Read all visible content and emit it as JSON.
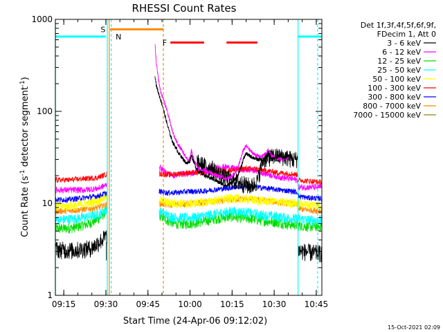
{
  "chart_data": {
    "type": "line",
    "title": "RHESSI Count Rates",
    "xlabel": "Start Time (24-Apr-06 09:12:02)",
    "ylabel": "Count Rate (s⁻¹ detector segment⁻¹)",
    "ylabel_parts": {
      "main": "Count Rate (s",
      "sup1": "-1",
      "mid": " detector segment",
      "sup2": "-1",
      "end": ")"
    },
    "y_scale": "log",
    "ylim": [
      1,
      1000
    ],
    "xlim_minutes": [
      0,
      95
    ],
    "x_ticks": [
      "09:15",
      "09:30",
      "09:45",
      "10:00",
      "10:15",
      "10:30",
      "10:45"
    ],
    "y_ticks": [
      "1",
      "10",
      "100",
      "1000"
    ],
    "legend_header": [
      "Det 1f,3f,4f,5f,6f,9f,",
      "FDecim 1, Att 0"
    ],
    "timestamp": "15-Oct-2021 02:09",
    "grid": false,
    "legend_position": "right",
    "series": [
      {
        "name": "3 - 6 keV",
        "color": "#000000",
        "pre": [
          [
            0,
            3.2
          ],
          [
            6,
            3.1
          ],
          [
            13,
            3.3
          ],
          [
            16,
            3.9
          ],
          [
            18.5,
            4.5
          ]
        ],
        "post": [
          [
            50.5,
            28
          ],
          [
            53,
            26
          ],
          [
            56,
            24
          ],
          [
            58,
            21
          ],
          [
            61,
            19
          ],
          [
            63,
            18
          ],
          [
            66,
            17
          ],
          [
            68,
            16
          ],
          [
            70,
            15.5
          ],
          [
            72,
            17.5
          ],
          [
            74,
            30
          ],
          [
            78,
            33
          ],
          [
            82,
            32
          ],
          [
            85,
            30
          ],
          [
            86.5,
            31
          ]
        ],
        "tail": [
          [
            86.5,
            3.1
          ],
          [
            89,
            3.0
          ],
          [
            93,
            2.9
          ],
          [
            95,
            2.9
          ]
        ]
      },
      {
        "name": "6 - 12 keV",
        "color": "#ff00ff",
        "pre": [
          [
            0,
            14
          ],
          [
            5,
            14
          ],
          [
            10,
            14
          ],
          [
            15,
            14.5
          ],
          [
            18.5,
            16
          ]
        ],
        "post": [
          [
            37,
            25
          ],
          [
            39,
            22
          ],
          [
            42,
            20
          ],
          [
            44,
            21
          ],
          [
            46,
            21
          ],
          [
            48,
            21
          ],
          [
            50,
            22
          ],
          [
            53,
            23
          ],
          [
            56,
            24
          ],
          [
            60,
            25
          ],
          [
            64,
            24
          ],
          [
            68,
            23
          ],
          [
            71,
            23
          ],
          [
            73,
            22
          ],
          [
            75,
            21
          ],
          [
            78,
            20
          ],
          [
            81,
            19
          ],
          [
            84,
            18.5
          ],
          [
            86.5,
            18
          ]
        ],
        "tail": [
          [
            86.5,
            15
          ],
          [
            90,
            15
          ],
          [
            95,
            15
          ]
        ]
      },
      {
        "name": "12 - 25 keV",
        "color": "#00dd00",
        "pre": [
          [
            0,
            5.3
          ],
          [
            6,
            5.4
          ],
          [
            12,
            6
          ],
          [
            16,
            7
          ],
          [
            18.5,
            8.5
          ]
        ],
        "post": [
          [
            37,
            7.5
          ],
          [
            40,
            6.5
          ],
          [
            43,
            6
          ],
          [
            47,
            6
          ],
          [
            52,
            6.3
          ],
          [
            57,
            6.8
          ],
          [
            62,
            7.2
          ],
          [
            66,
            7
          ],
          [
            70,
            6.8
          ],
          [
            74,
            6.5
          ],
          [
            78,
            6.3
          ],
          [
            82,
            6
          ],
          [
            86.5,
            5.8
          ]
        ],
        "tail": [
          [
            86.5,
            5.8
          ],
          [
            90,
            5.6
          ],
          [
            95,
            5.6
          ]
        ]
      },
      {
        "name": "25 - 50 keV",
        "color": "#00ffff",
        "pre": [
          [
            0,
            6.6
          ],
          [
            6,
            6.8
          ],
          [
            12,
            7.2
          ],
          [
            16,
            7.8
          ],
          [
            18.5,
            8.6
          ]
        ],
        "post": [
          [
            37,
            8.2
          ],
          [
            40,
            7.4
          ],
          [
            43,
            7
          ],
          [
            48,
            7
          ],
          [
            53,
            7.3
          ],
          [
            58,
            7.8
          ],
          [
            63,
            8.2
          ],
          [
            68,
            8
          ],
          [
            72,
            7.6
          ],
          [
            77,
            7.3
          ],
          [
            82,
            7
          ],
          [
            86.5,
            6.8
          ]
        ],
        "tail": [
          [
            86.5,
            6.8
          ],
          [
            90,
            6.6
          ],
          [
            95,
            6.6
          ]
        ]
      },
      {
        "name": "50 - 100 keV",
        "color": "#ffff00",
        "pre": [
          [
            0,
            9.2
          ],
          [
            6,
            9.4
          ],
          [
            12,
            10
          ],
          [
            16,
            11
          ],
          [
            18.5,
            12
          ]
        ],
        "post": [
          [
            37,
            11
          ],
          [
            40,
            10.2
          ],
          [
            43,
            10
          ],
          [
            48,
            10
          ],
          [
            53,
            10.3
          ],
          [
            58,
            10.8
          ],
          [
            63,
            11.4
          ],
          [
            68,
            11.2
          ],
          [
            72,
            10.8
          ],
          [
            77,
            10.5
          ],
          [
            82,
            10.2
          ],
          [
            86.5,
            10
          ]
        ],
        "tail": [
          [
            86.5,
            10
          ],
          [
            90,
            9.7
          ],
          [
            95,
            9.6
          ]
        ]
      },
      {
        "name": "100 - 300 keV",
        "color": "#ff0000",
        "pre": [
          [
            0,
            18
          ],
          [
            5,
            18
          ],
          [
            10,
            18.5
          ],
          [
            15,
            19
          ],
          [
            18.5,
            21
          ]
        ],
        "post": [
          [
            37,
            21
          ],
          [
            40,
            20.5
          ],
          [
            44,
            21
          ],
          [
            48,
            21.5
          ],
          [
            52,
            21.5
          ],
          [
            56,
            22
          ],
          [
            60,
            22.5
          ],
          [
            64,
            23
          ],
          [
            68,
            24
          ],
          [
            72,
            23.5
          ],
          [
            76,
            22.5
          ],
          [
            80,
            21.5
          ],
          [
            84,
            21
          ],
          [
            86.5,
            20.5
          ]
        ],
        "tail": [
          [
            86.5,
            18
          ],
          [
            90,
            17.5
          ],
          [
            95,
            17
          ]
        ]
      },
      {
        "name": "300 - 800 keV",
        "color": "#0000ff",
        "pre": [
          [
            0,
            11
          ],
          [
            5,
            11
          ],
          [
            10,
            11.5
          ],
          [
            15,
            12
          ],
          [
            18.5,
            13
          ]
        ],
        "post": [
          [
            37,
            13.5
          ],
          [
            40,
            13
          ],
          [
            44,
            13.2
          ],
          [
            48,
            13.5
          ],
          [
            52,
            13.5
          ],
          [
            56,
            14
          ],
          [
            60,
            14.5
          ],
          [
            64,
            15
          ],
          [
            68,
            15.5
          ],
          [
            72,
            15
          ],
          [
            76,
            14.5
          ],
          [
            80,
            14
          ],
          [
            84,
            13.6
          ],
          [
            86.5,
            13.2
          ]
        ],
        "tail": [
          [
            86.5,
            12
          ],
          [
            90,
            11.5
          ],
          [
            95,
            11.3
          ]
        ]
      },
      {
        "name": "800 - 7000 keV",
        "color": "#ff8800",
        "pre": [
          [
            0,
            8.2
          ],
          [
            5,
            8.3
          ],
          [
            10,
            8.6
          ],
          [
            15,
            9
          ],
          [
            18.5,
            9.8
          ]
        ],
        "post": [
          [
            37,
            10
          ],
          [
            40,
            9.6
          ],
          [
            44,
            9.8
          ],
          [
            48,
            10
          ],
          [
            52,
            10.2
          ],
          [
            56,
            10.4
          ],
          [
            60,
            10.7
          ],
          [
            64,
            11
          ],
          [
            68,
            11.2
          ],
          [
            72,
            10.9
          ],
          [
            76,
            10.6
          ],
          [
            80,
            10.2
          ],
          [
            84,
            9.9
          ],
          [
            86.5,
            9.6
          ]
        ],
        "tail": [
          [
            86.5,
            8.8
          ],
          [
            90,
            8.5
          ],
          [
            95,
            8.3
          ]
        ]
      },
      {
        "name": "7000 - 15000 keV",
        "color": "#888800",
        "pre": [],
        "post": [],
        "tail": []
      }
    ],
    "flare": {
      "black": [
        [
          35.5,
          250
        ],
        [
          36,
          190
        ],
        [
          37,
          150
        ],
        [
          38,
          120
        ],
        [
          39,
          92
        ],
        [
          40,
          70
        ],
        [
          41,
          55
        ],
        [
          42,
          45
        ],
        [
          43,
          40
        ],
        [
          44,
          35
        ],
        [
          45,
          32
        ],
        [
          46,
          29
        ],
        [
          47,
          27
        ],
        [
          48,
          29
        ],
        [
          48.5,
          34
        ],
        [
          49,
          30
        ],
        [
          50,
          25
        ],
        [
          51,
          22
        ],
        [
          52,
          21.5
        ],
        [
          53,
          20.5
        ],
        [
          54,
          19.5
        ],
        [
          55,
          19
        ],
        [
          56,
          18.5
        ],
        [
          57,
          18
        ],
        [
          58,
          17
        ],
        [
          59,
          16.5
        ],
        [
          60,
          16
        ],
        [
          61,
          15.5
        ],
        [
          62,
          16
        ],
        [
          63,
          17
        ],
        [
          64,
          18
        ],
        [
          65,
          20
        ],
        [
          66,
          24
        ],
        [
          67,
          30
        ],
        [
          68,
          35
        ],
        [
          69,
          33
        ],
        [
          70,
          32
        ],
        [
          71,
          31
        ],
        [
          72,
          30
        ],
        [
          73,
          30
        ],
        [
          74,
          29
        ],
        [
          75,
          32
        ],
        [
          76,
          36
        ],
        [
          77,
          30
        ],
        [
          78,
          31
        ],
        [
          79,
          32
        ],
        [
          80,
          33
        ],
        [
          81,
          31
        ],
        [
          82,
          32
        ],
        [
          83,
          33
        ]
      ],
      "magenta": [
        [
          35.5,
          540
        ],
        [
          36,
          330
        ],
        [
          36.8,
          220
        ],
        [
          37.5,
          165
        ],
        [
          38.5,
          135
        ],
        [
          39.5,
          110
        ],
        [
          40.5,
          85
        ],
        [
          41.5,
          64
        ],
        [
          42.5,
          52
        ],
        [
          43.5,
          45
        ],
        [
          44.5,
          40
        ],
        [
          45.5,
          36
        ],
        [
          46.5,
          32
        ],
        [
          47.3,
          29
        ],
        [
          48,
          31
        ],
        [
          48.5,
          38
        ],
        [
          49,
          32
        ],
        [
          50,
          27
        ],
        [
          51,
          24
        ],
        [
          52,
          23
        ],
        [
          53,
          23
        ],
        [
          54,
          22
        ],
        [
          55,
          22
        ],
        [
          56,
          21
        ],
        [
          57,
          20.5
        ],
        [
          58,
          20
        ],
        [
          59,
          19.5
        ],
        [
          60,
          19
        ],
        [
          61,
          18.5
        ],
        [
          62,
          19
        ],
        [
          63,
          20
        ],
        [
          64,
          21
        ],
        [
          65,
          24
        ],
        [
          66,
          30
        ],
        [
          67,
          38
        ],
        [
          68,
          42
        ],
        [
          69,
          39
        ],
        [
          70,
          36
        ],
        [
          71,
          34
        ],
        [
          72,
          33
        ],
        [
          73,
          32
        ],
        [
          74,
          33
        ],
        [
          75,
          35
        ],
        [
          76,
          38
        ],
        [
          77,
          33
        ],
        [
          78,
          32
        ],
        [
          79,
          31
        ],
        [
          80,
          30
        ],
        [
          81,
          30
        ],
        [
          82,
          31
        ],
        [
          83,
          32
        ]
      ]
    },
    "markers": {
      "S": {
        "label": "S",
        "color": "#ff8800"
      },
      "N": {
        "label": "N",
        "color": "#00ffff"
      },
      "F": {
        "label": "F",
        "color": "#ff0000"
      }
    },
    "bars": [
      {
        "color": "#00ffff",
        "y": 650,
        "x": [
          0,
          18
        ]
      },
      {
        "color": "#00ffff",
        "y": 650,
        "x": [
          86.5,
          95
        ]
      },
      {
        "color": "#ff8800",
        "y": 780,
        "x": [
          19.5,
          38.5
        ]
      },
      {
        "color": "#ff0000",
        "y": 560,
        "x": [
          41,
          53
        ]
      },
      {
        "color": "#ff0000",
        "y": 560,
        "x": [
          61,
          72
        ]
      }
    ],
    "vlines": [
      {
        "x": 0,
        "color": "#00ffff",
        "dash": false
      },
      {
        "x": 18.5,
        "color": "#00ffff",
        "dash": false
      },
      {
        "x": 19.2,
        "color": "#ff8800",
        "dash": false
      },
      {
        "x": 19.9,
        "color": "#00ffff",
        "dash": true
      },
      {
        "x": 38.5,
        "color": "#ff8800",
        "dash": true
      },
      {
        "x": 86.5,
        "color": "#00ffff",
        "dash": false
      },
      {
        "x": 93.5,
        "color": "#00ffff",
        "dash": true
      }
    ]
  }
}
